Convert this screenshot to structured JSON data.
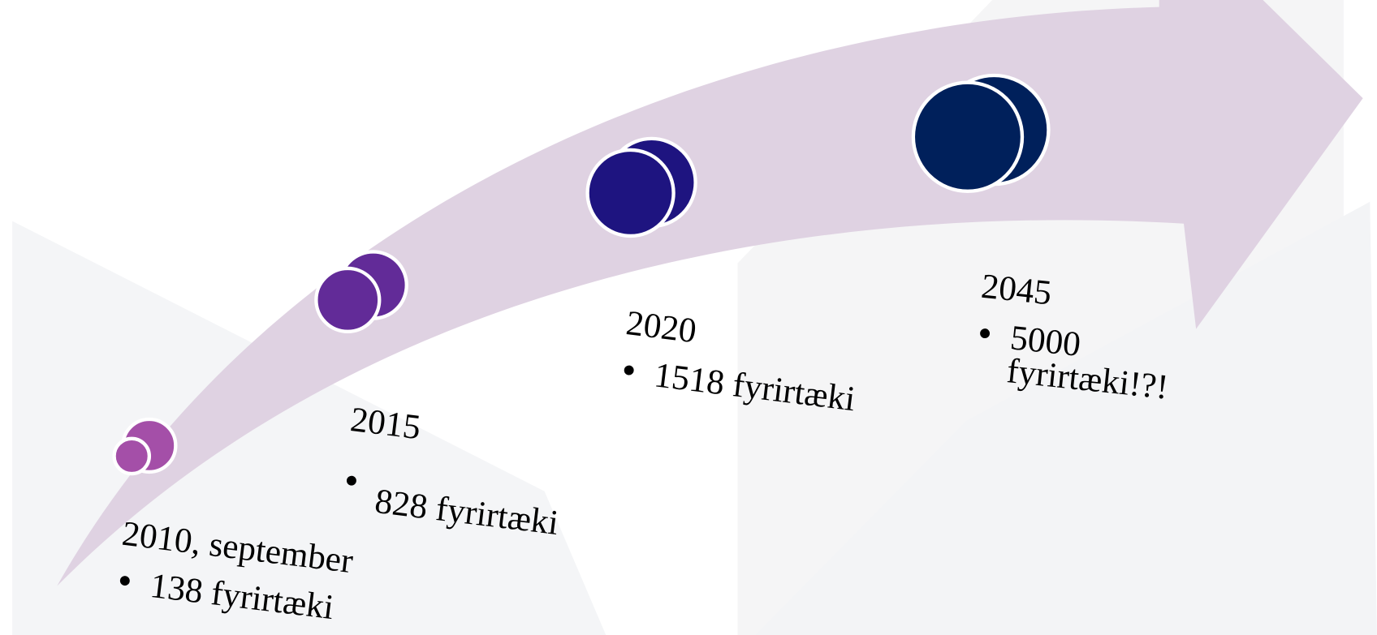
{
  "milestones": [
    {
      "label": "2010, september",
      "detail": "138 fyrirtæki"
    },
    {
      "label": "2015",
      "detail": "828 fyrirtæki"
    },
    {
      "label": "2020",
      "detail": "1518 fyrirtæki"
    },
    {
      "label": "2045",
      "detail": "5000 fyrirtæki!?!"
    }
  ]
}
